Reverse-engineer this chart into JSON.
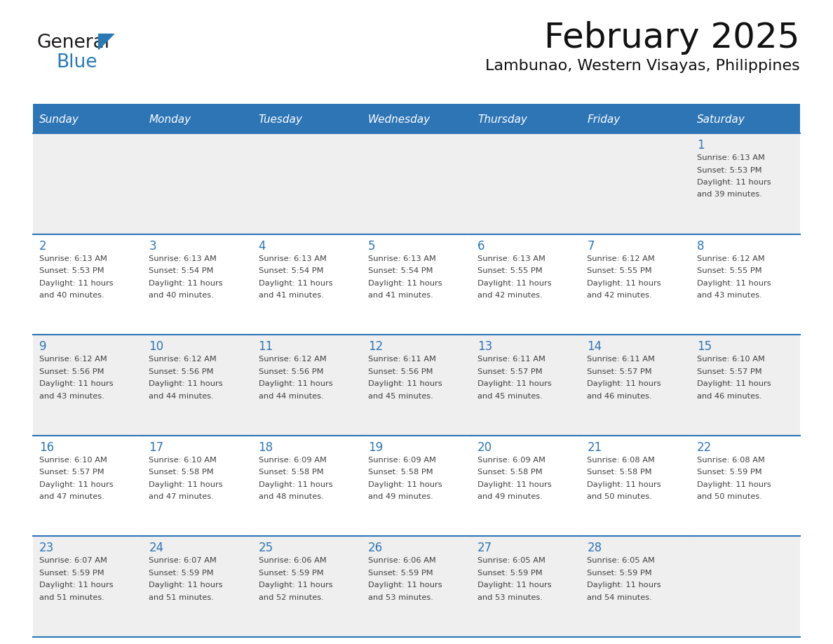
{
  "title": "February 2025",
  "subtitle": "Lambunao, Western Visayas, Philippines",
  "header_bg_color": "#2E75B6",
  "header_text_color": "#FFFFFF",
  "days_of_week": [
    "Sunday",
    "Monday",
    "Tuesday",
    "Wednesday",
    "Thursday",
    "Friday",
    "Saturday"
  ],
  "title_font_size": 36,
  "subtitle_font_size": 16,
  "logo_color1": "#1a1a1a",
  "logo_color2": "#2979b5",
  "cell_border_color": "#2E75B6",
  "cell_bg_color1": "#efefef",
  "cell_bg_color2": "#ffffff",
  "day_num_color": "#2E75B6",
  "info_text_color": "#404040",
  "info_font_size": 8.2,
  "day_num_font_size": 12,
  "dow_font_size": 11,
  "calendar_data": [
    [
      {
        "day": 0
      },
      {
        "day": 0
      },
      {
        "day": 0
      },
      {
        "day": 0
      },
      {
        "day": 0
      },
      {
        "day": 0
      },
      {
        "day": 1,
        "sunrise": "6:13 AM",
        "sunset": "5:53 PM",
        "daylight": "11 hours",
        "daylight2": "and 39 minutes."
      }
    ],
    [
      {
        "day": 2,
        "sunrise": "6:13 AM",
        "sunset": "5:53 PM",
        "daylight": "11 hours",
        "daylight2": "and 40 minutes."
      },
      {
        "day": 3,
        "sunrise": "6:13 AM",
        "sunset": "5:54 PM",
        "daylight": "11 hours",
        "daylight2": "and 40 minutes."
      },
      {
        "day": 4,
        "sunrise": "6:13 AM",
        "sunset": "5:54 PM",
        "daylight": "11 hours",
        "daylight2": "and 41 minutes."
      },
      {
        "day": 5,
        "sunrise": "6:13 AM",
        "sunset": "5:54 PM",
        "daylight": "11 hours",
        "daylight2": "and 41 minutes."
      },
      {
        "day": 6,
        "sunrise": "6:13 AM",
        "sunset": "5:55 PM",
        "daylight": "11 hours",
        "daylight2": "and 42 minutes."
      },
      {
        "day": 7,
        "sunrise": "6:12 AM",
        "sunset": "5:55 PM",
        "daylight": "11 hours",
        "daylight2": "and 42 minutes."
      },
      {
        "day": 8,
        "sunrise": "6:12 AM",
        "sunset": "5:55 PM",
        "daylight": "11 hours",
        "daylight2": "and 43 minutes."
      }
    ],
    [
      {
        "day": 9,
        "sunrise": "6:12 AM",
        "sunset": "5:56 PM",
        "daylight": "11 hours",
        "daylight2": "and 43 minutes."
      },
      {
        "day": 10,
        "sunrise": "6:12 AM",
        "sunset": "5:56 PM",
        "daylight": "11 hours",
        "daylight2": "and 44 minutes."
      },
      {
        "day": 11,
        "sunrise": "6:12 AM",
        "sunset": "5:56 PM",
        "daylight": "11 hours",
        "daylight2": "and 44 minutes."
      },
      {
        "day": 12,
        "sunrise": "6:11 AM",
        "sunset": "5:56 PM",
        "daylight": "11 hours",
        "daylight2": "and 45 minutes."
      },
      {
        "day": 13,
        "sunrise": "6:11 AM",
        "sunset": "5:57 PM",
        "daylight": "11 hours",
        "daylight2": "and 45 minutes."
      },
      {
        "day": 14,
        "sunrise": "6:11 AM",
        "sunset": "5:57 PM",
        "daylight": "11 hours",
        "daylight2": "and 46 minutes."
      },
      {
        "day": 15,
        "sunrise": "6:10 AM",
        "sunset": "5:57 PM",
        "daylight": "11 hours",
        "daylight2": "and 46 minutes."
      }
    ],
    [
      {
        "day": 16,
        "sunrise": "6:10 AM",
        "sunset": "5:57 PM",
        "daylight": "11 hours",
        "daylight2": "and 47 minutes."
      },
      {
        "day": 17,
        "sunrise": "6:10 AM",
        "sunset": "5:58 PM",
        "daylight": "11 hours",
        "daylight2": "and 47 minutes."
      },
      {
        "day": 18,
        "sunrise": "6:09 AM",
        "sunset": "5:58 PM",
        "daylight": "11 hours",
        "daylight2": "and 48 minutes."
      },
      {
        "day": 19,
        "sunrise": "6:09 AM",
        "sunset": "5:58 PM",
        "daylight": "11 hours",
        "daylight2": "and 49 minutes."
      },
      {
        "day": 20,
        "sunrise": "6:09 AM",
        "sunset": "5:58 PM",
        "daylight": "11 hours",
        "daylight2": "and 49 minutes."
      },
      {
        "day": 21,
        "sunrise": "6:08 AM",
        "sunset": "5:58 PM",
        "daylight": "11 hours",
        "daylight2": "and 50 minutes."
      },
      {
        "day": 22,
        "sunrise": "6:08 AM",
        "sunset": "5:59 PM",
        "daylight": "11 hours",
        "daylight2": "and 50 minutes."
      }
    ],
    [
      {
        "day": 23,
        "sunrise": "6:07 AM",
        "sunset": "5:59 PM",
        "daylight": "11 hours",
        "daylight2": "and 51 minutes."
      },
      {
        "day": 24,
        "sunrise": "6:07 AM",
        "sunset": "5:59 PM",
        "daylight": "11 hours",
        "daylight2": "and 51 minutes."
      },
      {
        "day": 25,
        "sunrise": "6:06 AM",
        "sunset": "5:59 PM",
        "daylight": "11 hours",
        "daylight2": "and 52 minutes."
      },
      {
        "day": 26,
        "sunrise": "6:06 AM",
        "sunset": "5:59 PM",
        "daylight": "11 hours",
        "daylight2": "and 53 minutes."
      },
      {
        "day": 27,
        "sunrise": "6:05 AM",
        "sunset": "5:59 PM",
        "daylight": "11 hours",
        "daylight2": "and 53 minutes."
      },
      {
        "day": 28,
        "sunrise": "6:05 AM",
        "sunset": "5:59 PM",
        "daylight": "11 hours",
        "daylight2": "and 54 minutes."
      },
      {
        "day": 0
      }
    ]
  ]
}
